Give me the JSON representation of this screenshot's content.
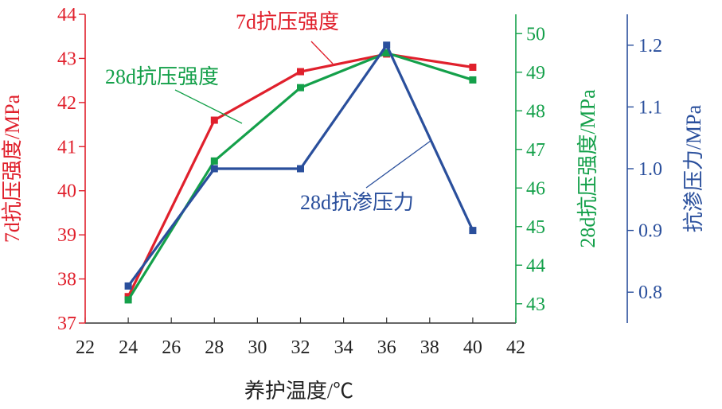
{
  "chart_data": {
    "type": "line",
    "xlabel": "养护温度/℃",
    "x_ticks": [
      22,
      24,
      26,
      28,
      30,
      32,
      34,
      36,
      38,
      40,
      42
    ],
    "xlim": [
      22,
      42
    ],
    "axes": {
      "left": {
        "label": "7d抗压强度/MPa",
        "ylim": [
          37,
          44
        ],
        "ticks": [
          37,
          38,
          39,
          40,
          41,
          42,
          43,
          44
        ],
        "decimals": 0,
        "color": "#e0202c"
      },
      "right1": {
        "label": "28d抗压强度/MPa",
        "ylim": [
          42.5,
          50.5
        ],
        "ticks": [
          43,
          44,
          45,
          46,
          47,
          48,
          49,
          50
        ],
        "decimals": 0,
        "color": "#14a04a"
      },
      "right2": {
        "label": "抗渗压力/MPa",
        "ylim": [
          0.75,
          1.25
        ],
        "ticks": [
          0.8,
          0.9,
          1.0,
          1.1,
          1.2
        ],
        "decimals": 1,
        "color": "#2a4f9c"
      }
    },
    "series": [
      {
        "name": "7d抗压强度",
        "axis": "left",
        "color": "#e0202c",
        "x": [
          24,
          28,
          32,
          36,
          40
        ],
        "values": [
          37.6,
          41.6,
          42.7,
          43.1,
          42.8
        ]
      },
      {
        "name": "28d抗压强度",
        "axis": "right1",
        "color": "#14a04a",
        "x": [
          24,
          28,
          32,
          36,
          40
        ],
        "values": [
          43.1,
          46.7,
          48.6,
          49.5,
          48.8
        ]
      },
      {
        "name": "28d抗渗压力",
        "axis": "right2",
        "color": "#2a4f9c",
        "x": [
          24,
          28,
          32,
          36,
          40
        ],
        "values": [
          0.81,
          1.0,
          1.0,
          1.2,
          0.9
        ]
      }
    ]
  }
}
